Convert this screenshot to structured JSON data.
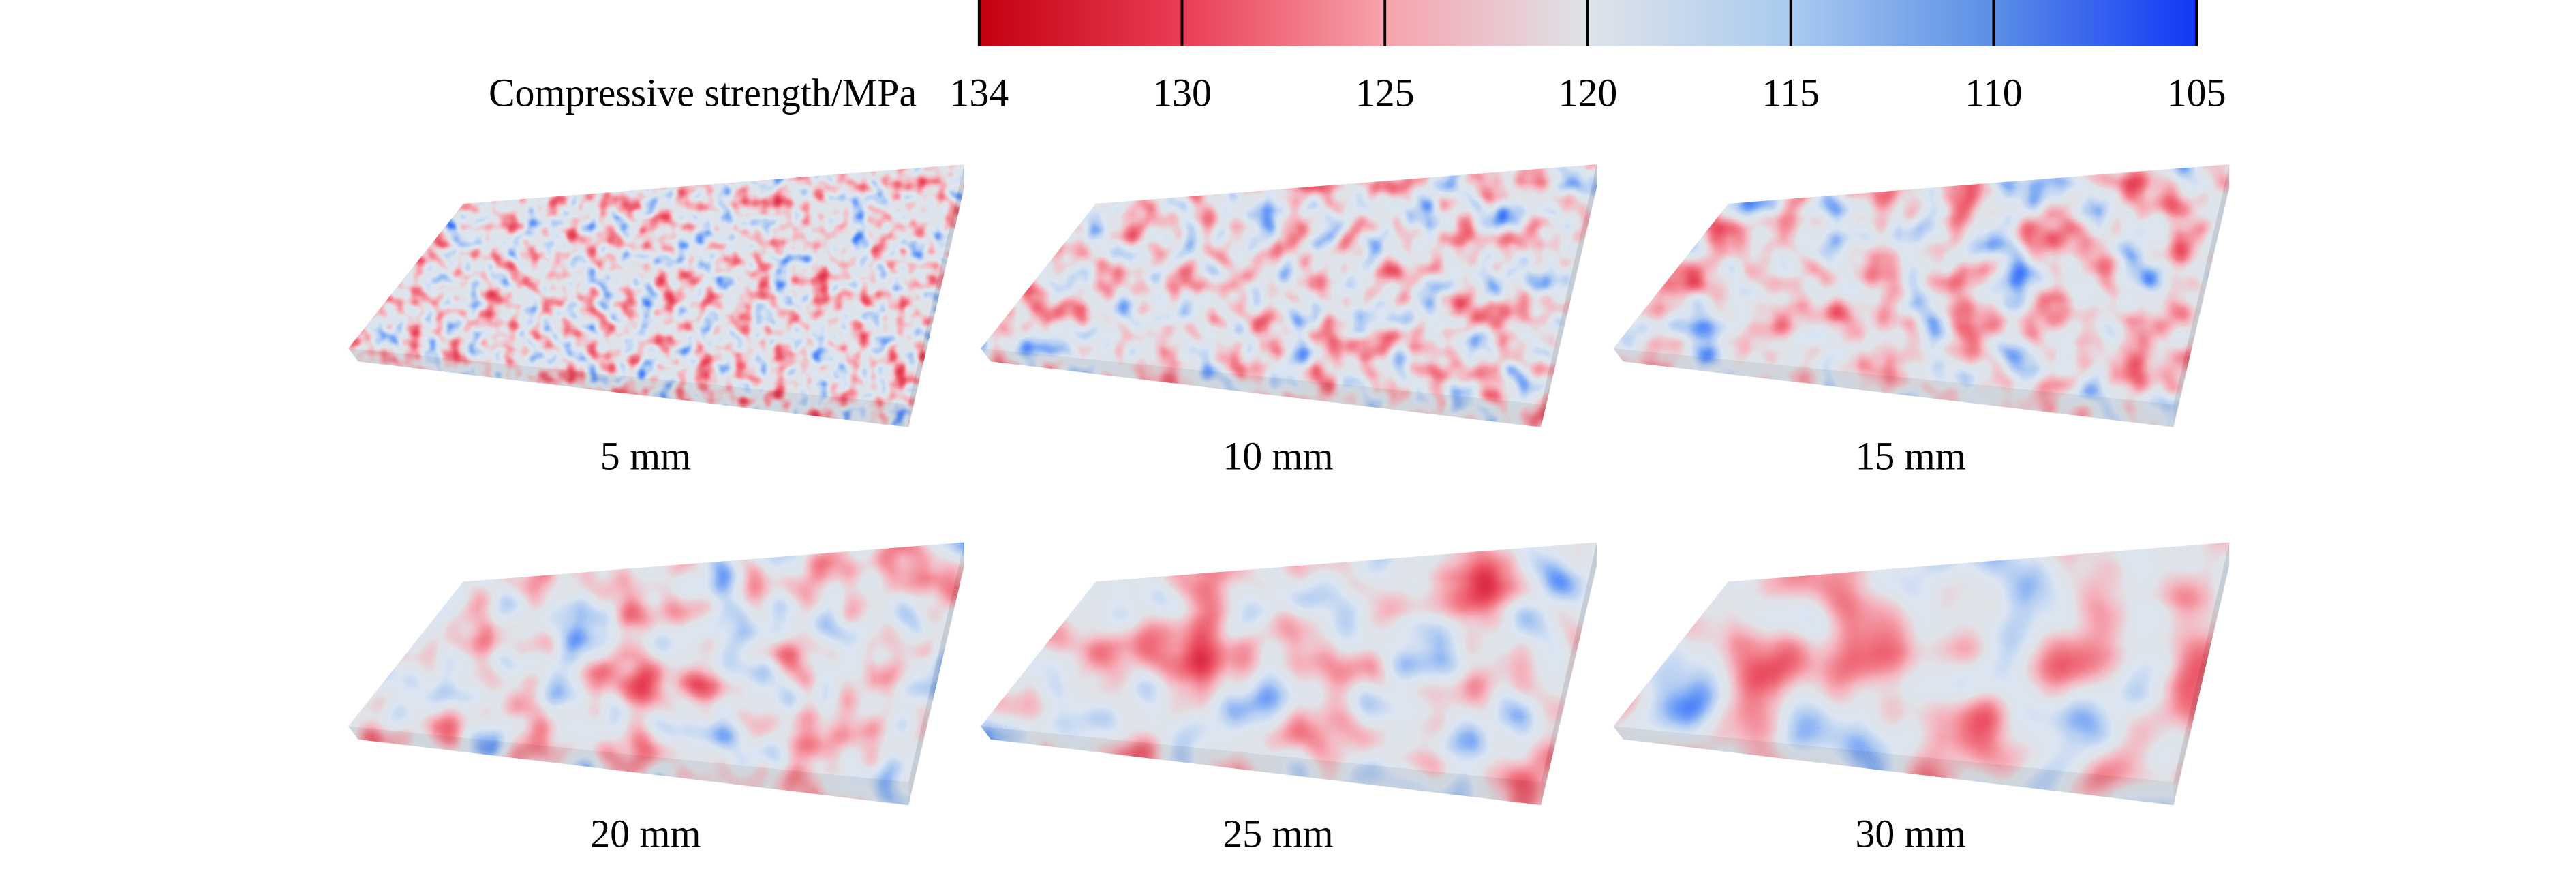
{
  "colorbar": {
    "label": "Compressive strength/MPa",
    "ticks": [
      134,
      130,
      125,
      120,
      115,
      110,
      105
    ],
    "colors": [
      "#c2000f",
      "#ea3d55",
      "#f7a3ad",
      "#dfe3e9",
      "#a9cbef",
      "#5b8ee6",
      "#1437f5"
    ]
  },
  "panels": [
    {
      "label": "5 mm"
    },
    {
      "label": "10 mm"
    },
    {
      "label": "15 mm"
    },
    {
      "label": "20 mm"
    },
    {
      "label": "25 mm"
    },
    {
      "label": "30 mm"
    }
  ]
}
